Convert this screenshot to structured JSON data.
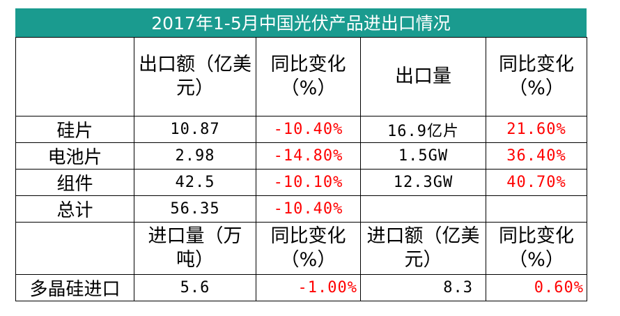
{
  "title": "2017年1-5月中国光伏产品进出口情况",
  "export_header": {
    "blank": "",
    "col1": "出口额（亿美元）",
    "col2": "同比变化（%）",
    "col3": "出口量",
    "col4": "同比变化（%）"
  },
  "export_rows": [
    {
      "label": "硅片",
      "amount": "10.87",
      "amount_change": "-10.40%",
      "volume": "16.9亿片",
      "volume_change": "21.60%"
    },
    {
      "label": "电池片",
      "amount": "2.98",
      "amount_change": "-14.80%",
      "volume": "1.5GW",
      "volume_change": "36.40%"
    },
    {
      "label": "组件",
      "amount": "42.5",
      "amount_change": "-10.10%",
      "volume": "12.3GW",
      "volume_change": "40.70%"
    },
    {
      "label": "总计",
      "amount": "56.35",
      "amount_change": "-10.40%",
      "volume": "",
      "volume_change": ""
    }
  ],
  "import_header": {
    "blank": "",
    "col1": "进口量（万吨）",
    "col2": "同比变化（%）",
    "col3": "进口额（亿美元）",
    "col4": "同比变化（%）"
  },
  "import_row": {
    "label": "多晶硅进口",
    "volume": "5.6",
    "volume_change": "-1.00%",
    "amount": "8.3",
    "amount_change": "0.60%"
  }
}
